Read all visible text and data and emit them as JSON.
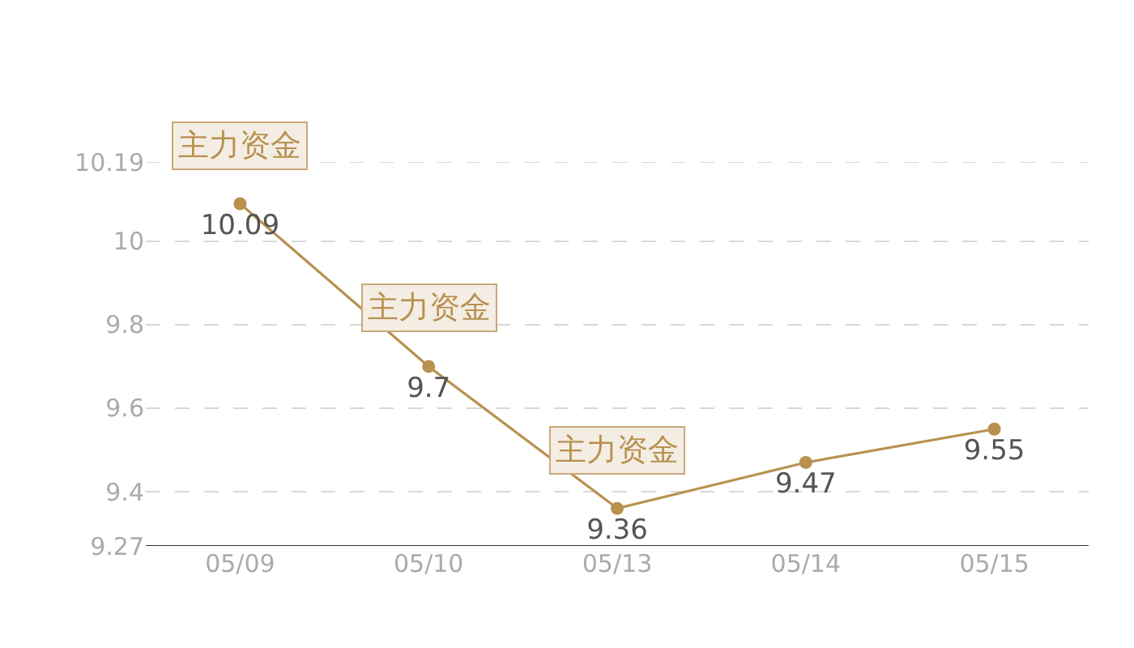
{
  "chart_data": {
    "type": "line",
    "categories": [
      "05/09",
      "05/10",
      "05/13",
      "05/14",
      "05/15"
    ],
    "series": [
      {
        "color": "#b8914f",
        "values": [
          10.09,
          9.7,
          9.36,
          9.47,
          9.55
        ]
      }
    ],
    "ylim": [
      9.27,
      10.19
    ],
    "yticks": [
      9.27,
      9.4,
      9.6,
      9.8,
      10,
      10.19
    ],
    "annotations": [
      {
        "text": "主力资金",
        "x": "05/09",
        "y": 10.09
      },
      {
        "text": "主力资金",
        "x": "05/10",
        "y": 9.7
      },
      {
        "text": "主力资金",
        "x": "05/13",
        "y": 9.36
      }
    ],
    "data_labels": true,
    "grid": "y",
    "marker": "circle",
    "line_style": "solid"
  }
}
